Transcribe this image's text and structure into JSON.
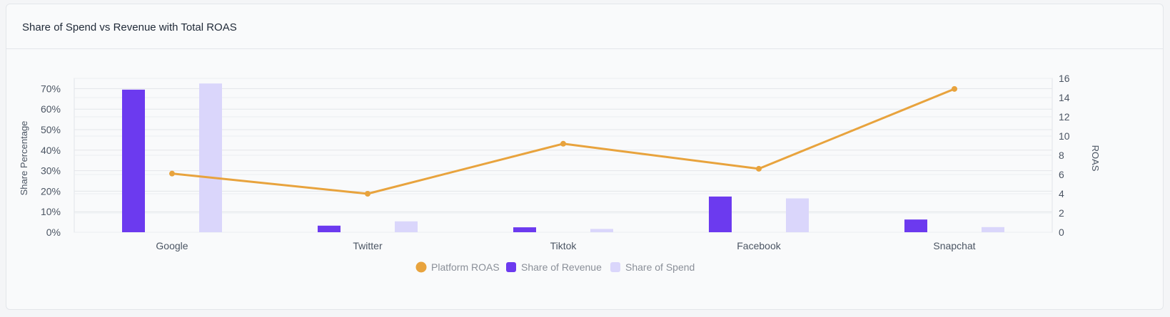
{
  "card": {
    "title": "Share of Spend vs Revenue with Total ROAS"
  },
  "chart_data": {
    "type": "bar",
    "combo": "bar+line",
    "categories": [
      "Google",
      "Twitter",
      "Tiktok",
      "Facebook",
      "Snapchat"
    ],
    "series": [
      {
        "name": "Share of Revenue",
        "type": "bar",
        "axis": "left",
        "color": "#6c3aef",
        "values": [
          69.5,
          3.2,
          2.4,
          17.4,
          6.2
        ]
      },
      {
        "name": "Share of Spend",
        "type": "bar",
        "axis": "left",
        "color": "#dad6fb",
        "values": [
          72.5,
          5.3,
          1.6,
          16.5,
          2.5
        ]
      },
      {
        "name": "Platform ROAS",
        "type": "line",
        "axis": "right",
        "color": "#e8a33d",
        "values": [
          6.1,
          4.0,
          9.2,
          6.6,
          14.9
        ]
      }
    ],
    "ylabel": "Share Percentage",
    "y2label": "ROAS",
    "ylim": [
      0,
      75
    ],
    "y2lim": [
      0,
      16
    ],
    "yticks": [
      "0%",
      "10%",
      "20%",
      "30%",
      "40%",
      "50%",
      "60%",
      "70%"
    ],
    "y2ticks": [
      "0",
      "2",
      "4",
      "6",
      "8",
      "10",
      "12",
      "14",
      "16"
    ],
    "legend": {
      "position": "bottom",
      "items": [
        "Platform ROAS",
        "Share of Revenue",
        "Share of Spend"
      ]
    },
    "grid": true
  }
}
